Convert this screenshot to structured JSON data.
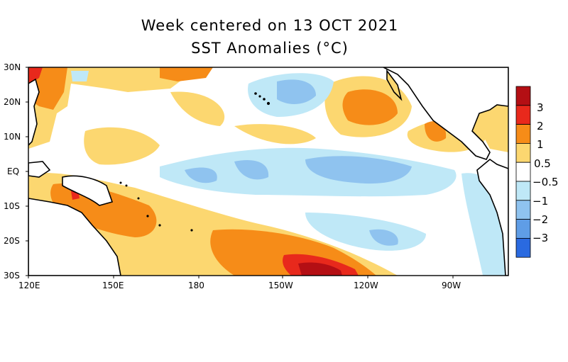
{
  "title": {
    "line1": "Week centered on 13 OCT 2021",
    "line2": "SST Anomalies (°C)"
  },
  "lat_labels": [
    "30N",
    "20N",
    "10N",
    "EQ",
    "10S",
    "20S",
    "30S"
  ],
  "lon_labels": [
    "120E",
    "150E",
    "180",
    "150W",
    "120W",
    "90W"
  ],
  "colorbar": {
    "labels": [
      "3",
      "2",
      "1",
      "0.5",
      "−0.5",
      "−1",
      "−2",
      "−3"
    ],
    "colors": [
      "#b40f14",
      "#e8291c",
      "#f68c18",
      "#fcd770",
      "#ffffff",
      "#bfe8f7",
      "#8fc3ef",
      "#5f9de6",
      "#2a6ae0"
    ]
  },
  "colors": {
    "land": "#ffffff",
    "coast": "#000000",
    "ocean": "#ffffff"
  }
}
